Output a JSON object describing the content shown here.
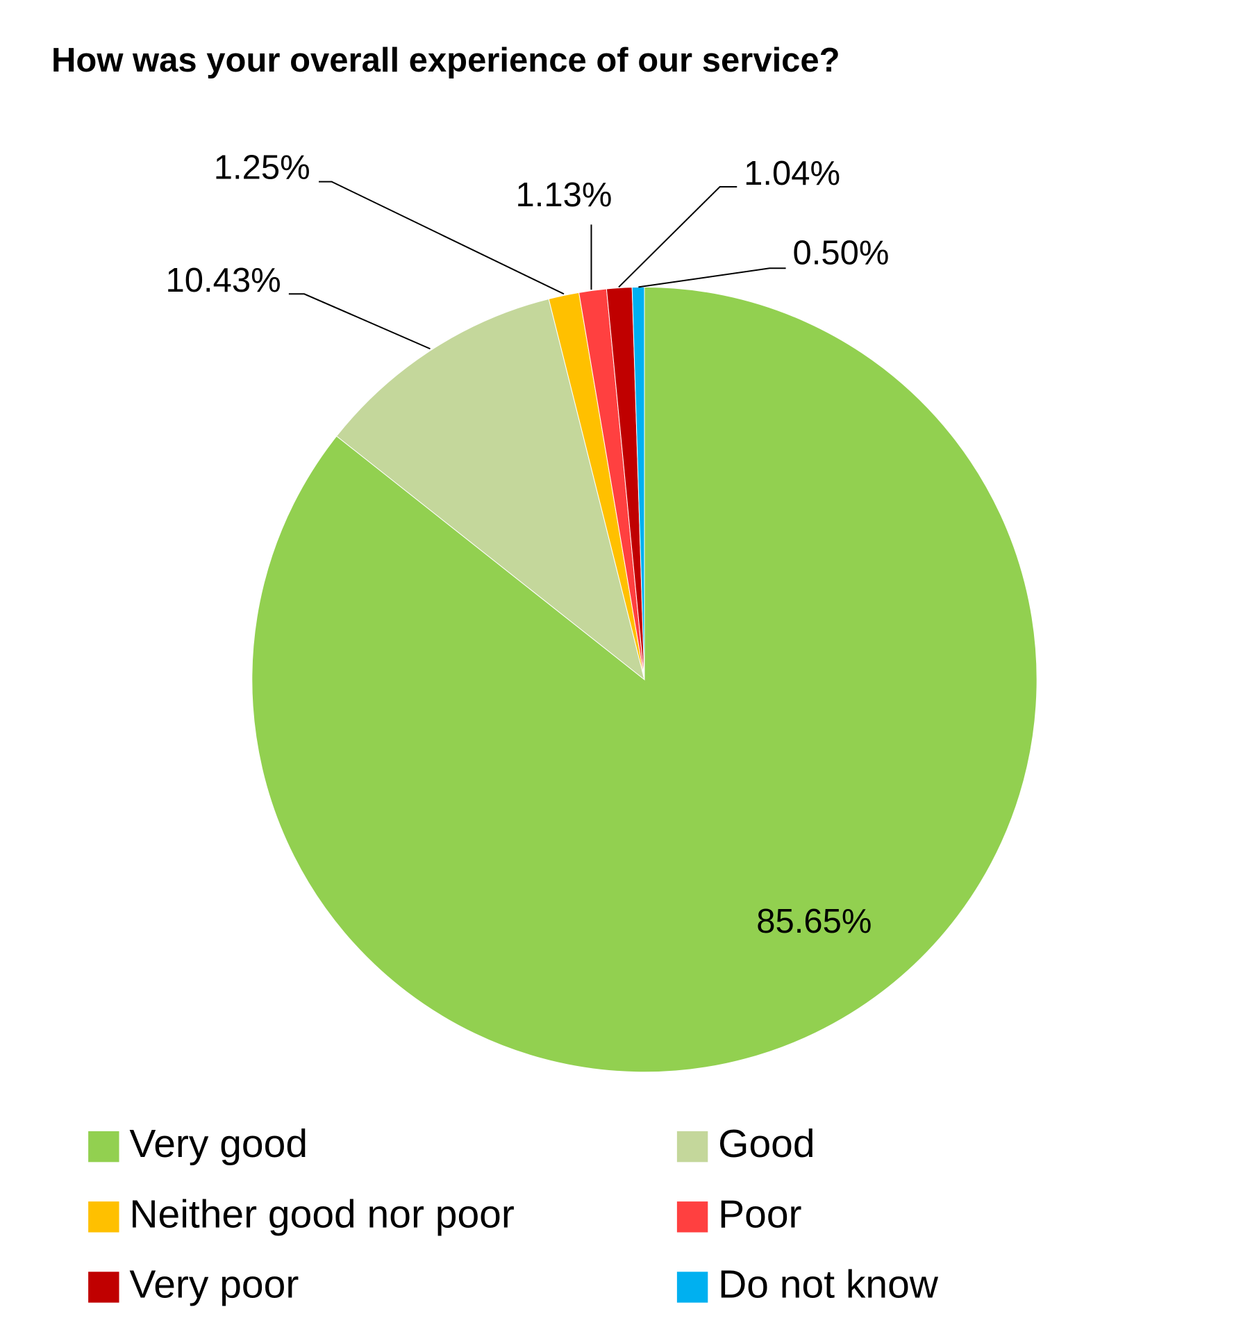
{
  "chart_data": {
    "type": "pie",
    "title": "How was your overall experience of our service?",
    "categories": [
      "Very good",
      "Good",
      "Neither good nor poor",
      "Poor",
      "Very poor",
      "Do not know"
    ],
    "series": [
      {
        "values": [
          85.65,
          10.43,
          1.25,
          1.13,
          1.04,
          0.5
        ],
        "value_labels": [
          "85.65%",
          "10.43%",
          "1.25%",
          "1.13%",
          "1.04%",
          "0.50%"
        ]
      }
    ],
    "colors": [
      "#92d050",
      "#c4d79b",
      "#ffc000",
      "#ff4040",
      "#c00000",
      "#00b0f0"
    ],
    "legend": "bottom"
  }
}
